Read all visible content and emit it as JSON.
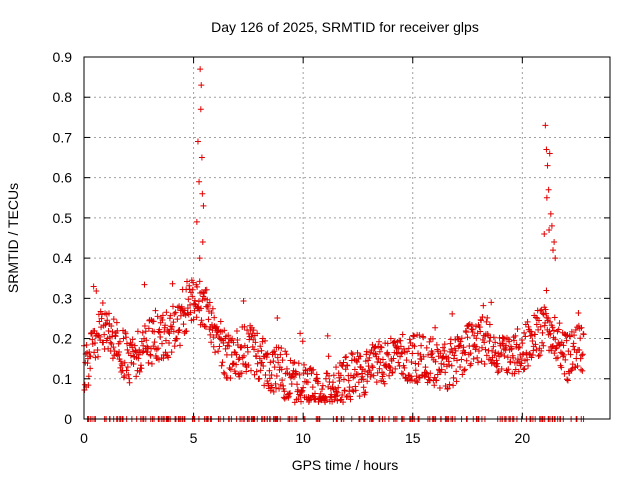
{
  "chart_data": {
    "type": "scatter",
    "title": "Day 126 of 2025, SRMTID for receiver glps",
    "xlabel": "GPS time / hours",
    "ylabel": "SRMTID / TECUs",
    "xlim": [
      0,
      24
    ],
    "ylim": [
      0,
      0.9
    ],
    "xticks": [
      0,
      5,
      10,
      15,
      20
    ],
    "xtick_labels": [
      "0",
      "5",
      "10",
      "15",
      "20"
    ],
    "yticks": [
      0,
      0.1,
      0.2,
      0.3,
      0.4,
      0.5,
      0.6,
      0.7,
      0.8,
      0.9
    ],
    "ytick_labels": [
      "0",
      "0.1",
      "0.2",
      "0.3",
      "0.4",
      "0.5",
      "0.6",
      "0.7",
      "0.8",
      "0.9"
    ],
    "grid": true,
    "marker": "+",
    "color": "#e00000",
    "time_step_hours": 0.02,
    "time_end_hours": 22.8,
    "series": [
      {
        "name": "SRMTID",
        "profile": [
          [
            0.0,
            0.12
          ],
          [
            0.3,
            0.15
          ],
          [
            0.6,
            0.2
          ],
          [
            1.0,
            0.22
          ],
          [
            1.4,
            0.2
          ],
          [
            1.8,
            0.16
          ],
          [
            2.2,
            0.14
          ],
          [
            2.6,
            0.16
          ],
          [
            3.0,
            0.19
          ],
          [
            3.6,
            0.2
          ],
          [
            4.0,
            0.22
          ],
          [
            4.5,
            0.25
          ],
          [
            5.0,
            0.3
          ],
          [
            5.5,
            0.28
          ],
          [
            6.0,
            0.22
          ],
          [
            6.5,
            0.15
          ],
          [
            7.0,
            0.16
          ],
          [
            7.5,
            0.18
          ],
          [
            8.0,
            0.15
          ],
          [
            8.5,
            0.13
          ],
          [
            9.0,
            0.12
          ],
          [
            9.5,
            0.09
          ],
          [
            10.0,
            0.08
          ],
          [
            10.5,
            0.07
          ],
          [
            11.0,
            0.06
          ],
          [
            11.5,
            0.08
          ],
          [
            12.0,
            0.1
          ],
          [
            12.5,
            0.11
          ],
          [
            13.0,
            0.12
          ],
          [
            13.5,
            0.14
          ],
          [
            14.0,
            0.15
          ],
          [
            14.5,
            0.16
          ],
          [
            15.0,
            0.15
          ],
          [
            15.5,
            0.15
          ],
          [
            16.0,
            0.14
          ],
          [
            16.5,
            0.13
          ],
          [
            17.0,
            0.15
          ],
          [
            17.5,
            0.18
          ],
          [
            18.0,
            0.2
          ],
          [
            18.5,
            0.19
          ],
          [
            19.0,
            0.17
          ],
          [
            19.5,
            0.16
          ],
          [
            20.0,
            0.18
          ],
          [
            20.5,
            0.2
          ],
          [
            21.0,
            0.23
          ],
          [
            21.5,
            0.2
          ],
          [
            22.0,
            0.15
          ],
          [
            22.5,
            0.17
          ],
          [
            22.8,
            0.18
          ]
        ],
        "spikes": [
          [
            5.15,
            0.49
          ],
          [
            5.2,
            0.69
          ],
          [
            5.25,
            0.59
          ],
          [
            5.3,
            0.87
          ],
          [
            5.35,
            0.83
          ],
          [
            5.33,
            0.77
          ],
          [
            5.38,
            0.65
          ],
          [
            5.4,
            0.56
          ],
          [
            5.42,
            0.44
          ],
          [
            5.45,
            0.53
          ],
          [
            5.28,
            0.4
          ],
          [
            21.05,
            0.73
          ],
          [
            21.1,
            0.67
          ],
          [
            21.15,
            0.63
          ],
          [
            21.2,
            0.57
          ],
          [
            21.25,
            0.66
          ],
          [
            21.3,
            0.51
          ],
          [
            21.35,
            0.48
          ],
          [
            21.4,
            0.42
          ],
          [
            21.45,
            0.44
          ],
          [
            21.5,
            0.4
          ],
          [
            21.12,
            0.55
          ],
          [
            21.22,
            0.47
          ],
          [
            21.0,
            0.46
          ]
        ],
        "zero_markers": true
      }
    ]
  }
}
